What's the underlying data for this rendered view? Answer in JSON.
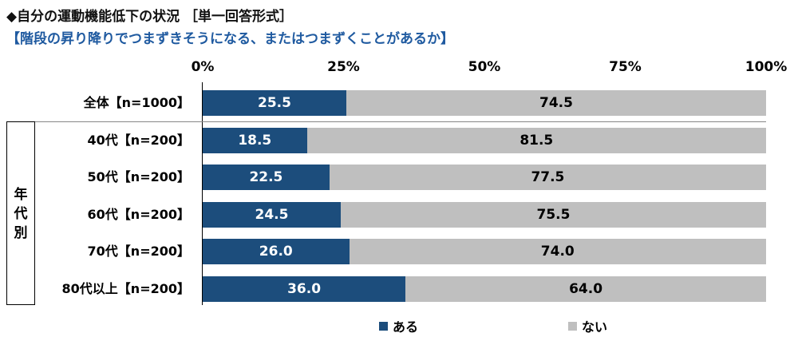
{
  "title": "◆自分の運動機能低下の状況 ［単一回答形式］",
  "subtitle": "【階段の昇り降りでつまずきそうになる、またはつまずくことがあるか】",
  "group_label": [
    "年",
    "代",
    "別"
  ],
  "colors": {
    "series_a": "#1c4d7c",
    "series_b": "#bfbfbf"
  },
  "chart_data": {
    "type": "bar",
    "orientation": "horizontal",
    "stacked": true,
    "percent": true,
    "xlim": [
      0,
      100
    ],
    "ticks": [
      "0%",
      "25%",
      "50%",
      "75%",
      "100%"
    ],
    "tick_values": [
      0,
      25,
      50,
      75,
      100
    ],
    "categories": [
      "全体【n=1000】",
      "40代【n=200】",
      "50代【n=200】",
      "60代【n=200】",
      "70代【n=200】",
      "80代以上【n=200】"
    ],
    "series": [
      {
        "name": "ある",
        "values": [
          "25.5",
          "18.5",
          "22.5",
          "24.5",
          "26.0",
          "36.0"
        ]
      },
      {
        "name": "ない",
        "values": [
          "74.5",
          "81.5",
          "77.5",
          "75.5",
          "74.0",
          "64.0"
        ]
      }
    ],
    "legend_position": "bottom"
  }
}
